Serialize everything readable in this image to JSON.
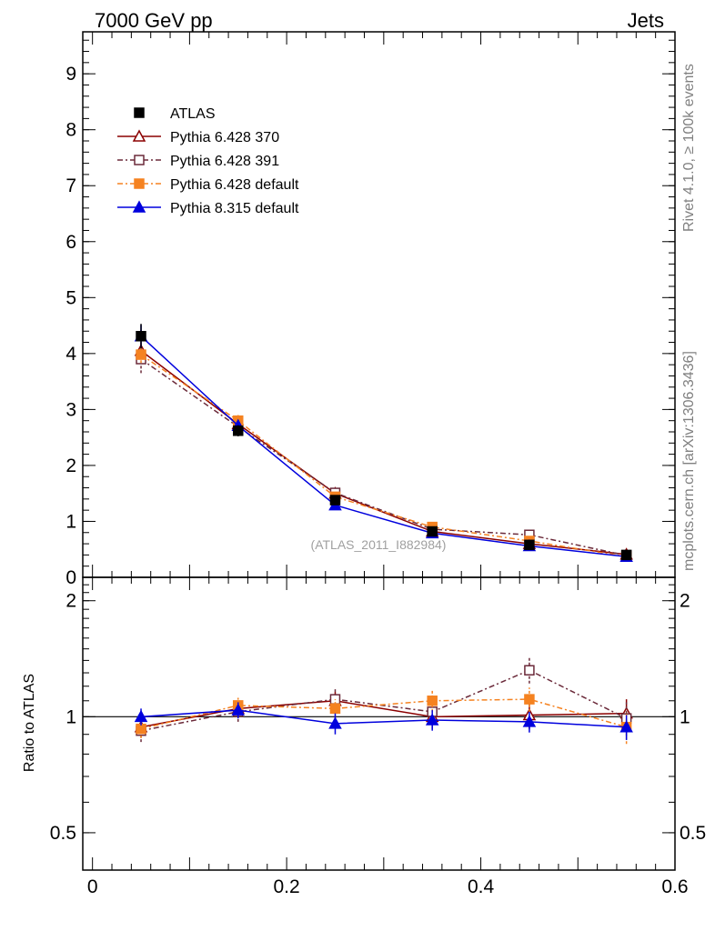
{
  "header": {
    "left": "7000 GeV pp",
    "right": "Jets"
  },
  "side_labels": {
    "rivet": "Rivet 4.1.0, ≥ 100k events",
    "mcplots": "mcplots.cern.ch [arXiv:1306.3436]"
  },
  "analysis_tag": "(ATLAS_2011_I882984)",
  "chart_data": [
    {
      "type": "scatter",
      "panel": "main",
      "x": [
        0.05,
        0.15,
        0.25,
        0.35,
        0.45,
        0.55
      ],
      "xlim": [
        -0.01,
        0.6
      ],
      "ylim": [
        0,
        9.75
      ],
      "yticks": [
        0,
        1,
        2,
        3,
        4,
        5,
        6,
        7,
        8,
        9
      ],
      "ytick_labels": [
        "0",
        "1",
        "2",
        "3",
        "4",
        "5",
        "6",
        "7",
        "8",
        "9"
      ],
      "xlabel": "",
      "ylabel": "",
      "legend_position": "top-left",
      "series": [
        {
          "name": "ATLAS",
          "kind": "data",
          "color": "#000000",
          "marker": "square-filled",
          "values": [
            4.31,
            2.62,
            1.38,
            0.82,
            0.58,
            0.4
          ],
          "errors": [
            0.22,
            0.1,
            0.06,
            0.05,
            0.04,
            0.04
          ]
        },
        {
          "name": "Pythia 6.428 370",
          "color": "#8b0000",
          "dash": "",
          "marker": "triangle-open",
          "values": [
            4.05,
            2.74,
            1.5,
            0.82,
            0.6,
            0.41
          ],
          "errors": [
            0.15,
            0.09,
            0.06,
            0.04,
            0.04,
            0.03
          ]
        },
        {
          "name": "Pythia 6.428 391",
          "color": "#6b2a3a",
          "dash": "6,3,2,3",
          "marker": "square-open",
          "values": [
            3.9,
            2.69,
            1.51,
            0.86,
            0.76,
            0.39
          ],
          "errors": [
            0.25,
            0.12,
            0.08,
            0.06,
            0.05,
            0.04
          ]
        },
        {
          "name": "Pythia 6.428 default",
          "color": "#f58220",
          "dash": "6,3,2,3",
          "marker": "square-filled",
          "values": [
            3.98,
            2.8,
            1.44,
            0.9,
            0.65,
            0.37
          ],
          "errors": [
            0.15,
            0.1,
            0.06,
            0.04,
            0.03,
            0.03
          ]
        },
        {
          "name": "Pythia 8.315 default",
          "color": "#0000dd",
          "dash": "",
          "marker": "triangle-filled",
          "values": [
            4.31,
            2.71,
            1.29,
            0.79,
            0.56,
            0.37
          ],
          "errors": [
            0.2,
            0.1,
            0.05,
            0.04,
            0.03,
            0.03
          ]
        }
      ]
    },
    {
      "type": "scatter",
      "panel": "ratio",
      "x": [
        0.05,
        0.15,
        0.25,
        0.35,
        0.45,
        0.55
      ],
      "xlim": [
        -0.01,
        0.6
      ],
      "ylim": [
        0.4,
        2.3
      ],
      "xticks": [
        0,
        0.2,
        0.4,
        0.6
      ],
      "xtick_labels": [
        "0",
        "0.2",
        "0.4",
        "0.6"
      ],
      "yticks": [
        0.5,
        1,
        2
      ],
      "ytick_labels": [
        "0.5",
        "1",
        "2"
      ],
      "ylabel": "Ratio to ATLAS",
      "reference_line": 1,
      "series": [
        {
          "name": "Pythia 6.428 370",
          "color": "#8b0000",
          "dash": "",
          "marker": "triangle-open",
          "values": [
            0.94,
            1.05,
            1.1,
            1.0,
            1.01,
            1.02
          ],
          "errors": [
            0.05,
            0.05,
            0.06,
            0.07,
            0.08,
            0.09
          ]
        },
        {
          "name": "Pythia 6.428 391",
          "color": "#6b2a3a",
          "dash": "6,3,2,3",
          "marker": "square-open",
          "values": [
            0.92,
            1.03,
            1.11,
            1.03,
            1.32,
            0.99
          ],
          "errors": [
            0.06,
            0.06,
            0.07,
            0.08,
            0.1,
            0.1
          ]
        },
        {
          "name": "Pythia 6.428 default",
          "color": "#f58220",
          "dash": "6,3,2,3",
          "marker": "square-filled",
          "values": [
            0.93,
            1.07,
            1.05,
            1.1,
            1.11,
            0.94
          ],
          "errors": [
            0.05,
            0.05,
            0.06,
            0.07,
            0.08,
            0.09
          ]
        },
        {
          "name": "Pythia 8.315 default",
          "color": "#0000dd",
          "dash": "",
          "marker": "triangle-filled",
          "values": [
            1.0,
            1.04,
            0.96,
            0.98,
            0.97,
            0.94
          ],
          "errors": [
            0.05,
            0.05,
            0.06,
            0.06,
            0.06,
            0.07
          ]
        }
      ]
    }
  ]
}
